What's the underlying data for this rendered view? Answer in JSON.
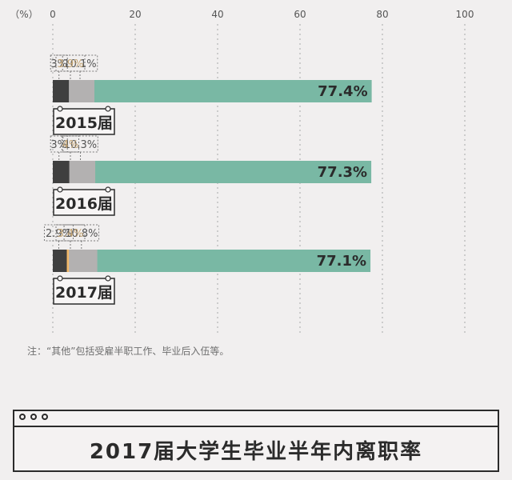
{
  "chart_data": {
    "type": "bar",
    "orientation": "horizontal",
    "stacked": true,
    "xunit": "（%）",
    "xlim": [
      0,
      100
    ],
    "xticks": [
      "0",
      "20",
      "40",
      "60",
      "80",
      "100"
    ],
    "categories": [
      "2015届",
      "2016届",
      "2017届"
    ],
    "series": [
      {
        "values": [
          77.4,
          77.3,
          77.1
        ],
        "labels": [
          "77.4%",
          "77.3%",
          "77.1%"
        ],
        "color": "#79b8a4"
      },
      {
        "values": [
          3,
          3,
          2.9
        ],
        "labels": [
          "3%",
          "3%",
          "2.9%"
        ],
        "color": "#e59a62"
      },
      {
        "values": [
          10.1,
          10.3,
          10.8
        ],
        "labels": [
          "10.1%",
          "10.3%",
          "10.8%"
        ],
        "color": "#b3b1b1"
      },
      {
        "values": [
          3.6,
          3.6,
          3.9
        ],
        "labels": [
          "",
          "",
          ""
        ],
        "color": "#f3b96a"
      },
      {
        "values": [
          3.9,
          4,
          3.4
        ],
        "labels": [
          "3.9%",
          "4%",
          "3.4%"
        ],
        "color": "#3f3f3f"
      }
    ],
    "grid": true
  },
  "footnote": "注：“其他”包括受雇半职工作、毕业后入伍等。",
  "title": "2017届大学生毕业半年内离职率",
  "colors": {
    "background": "#f1efef",
    "text": "#2b2b2b"
  }
}
